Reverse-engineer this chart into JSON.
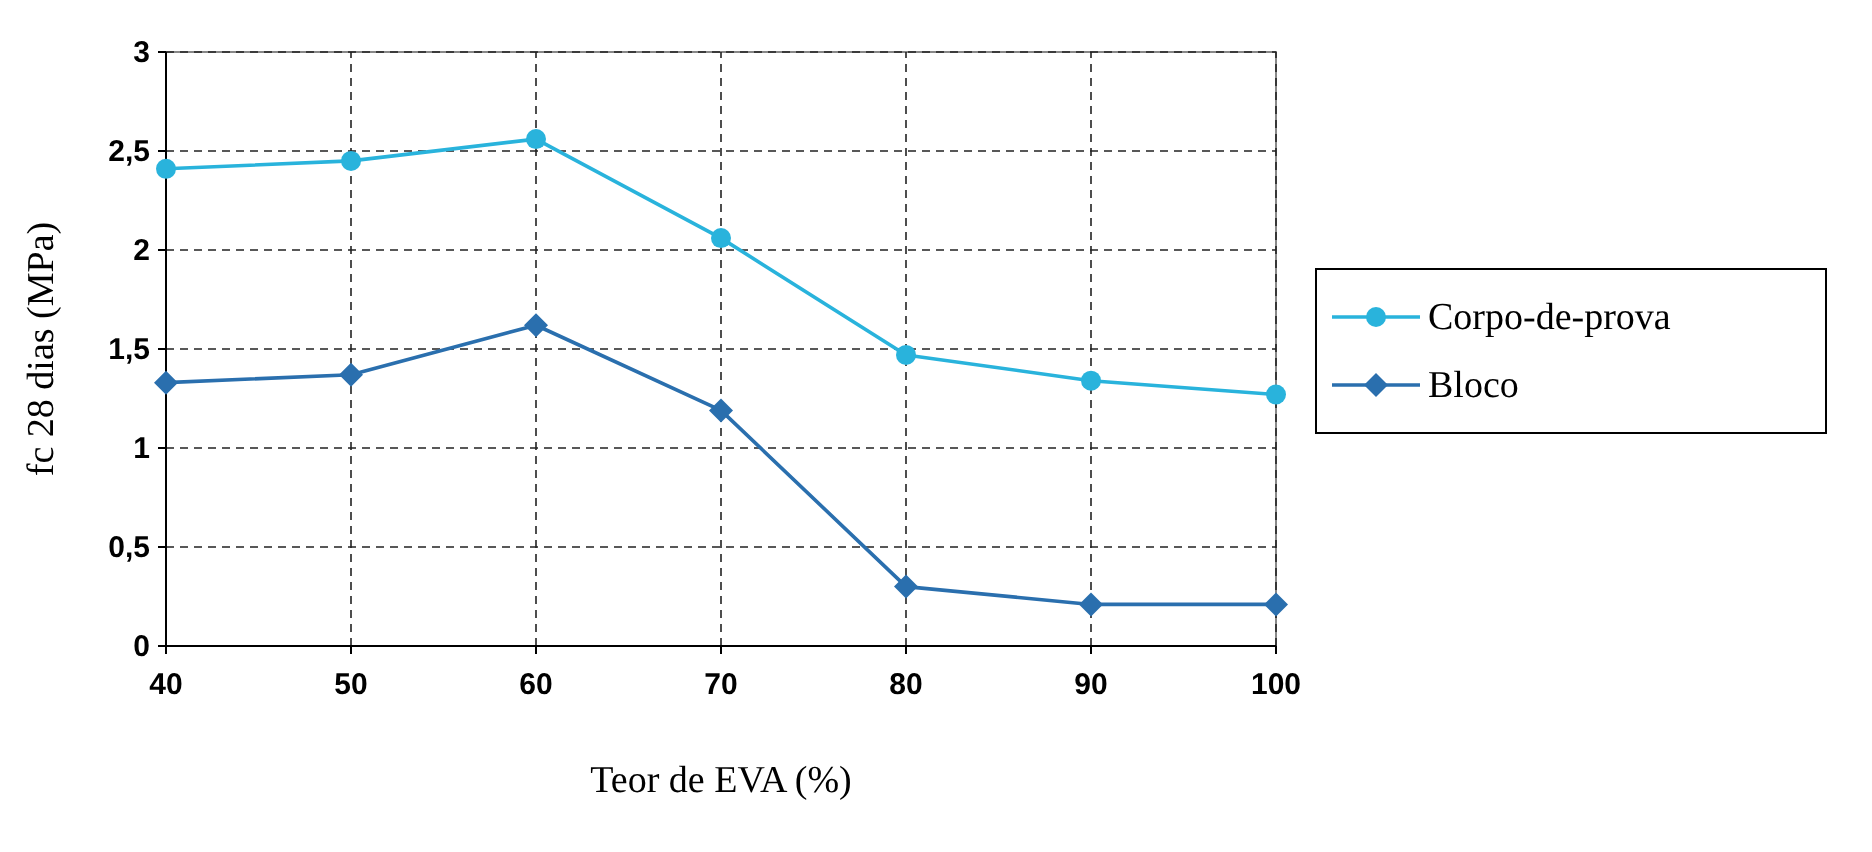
{
  "chart_data": {
    "type": "line",
    "xlabel": "Teor de EVA (%)",
    "ylabel": "fc 28 dias (MPa)",
    "x": [
      40,
      50,
      60,
      70,
      80,
      90,
      100
    ],
    "series": [
      {
        "name": "Corpo-de-prova",
        "color": "#29b3dc",
        "marker": "circle",
        "values": [
          2.41,
          2.45,
          2.56,
          2.06,
          1.47,
          1.34,
          1.27
        ]
      },
      {
        "name": "Bloco",
        "color": "#2a6fae",
        "marker": "diamond",
        "values": [
          1.33,
          1.37,
          1.62,
          1.19,
          0.3,
          0.21,
          0.21
        ]
      }
    ],
    "xlim": [
      40,
      100
    ],
    "xticks": [
      40,
      50,
      60,
      70,
      80,
      90,
      100
    ],
    "ylim": [
      0,
      3
    ],
    "yticks": [
      0,
      {
        "value": 0.5,
        "label": "0,5"
      },
      1,
      {
        "value": 1.5,
        "label": "1,5"
      },
      2,
      {
        "value": 2.5,
        "label": "2,5"
      },
      3
    ],
    "grid": true,
    "legend": "right"
  }
}
